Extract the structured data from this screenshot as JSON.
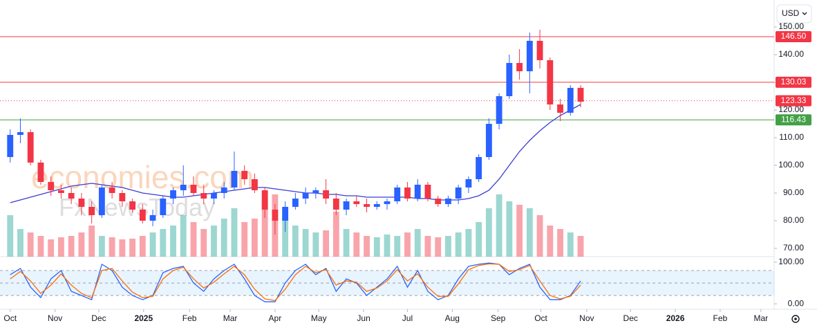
{
  "chart_data": {
    "type": "candlestick",
    "currency": "USD",
    "watermark": [
      "economies.com",
      "FxNewsToday"
    ],
    "x": [
      0,
      1,
      2,
      3,
      4,
      5,
      6,
      7,
      8,
      9,
      10,
      11,
      12,
      13,
      14,
      15,
      16,
      17,
      18,
      19,
      20,
      21,
      22,
      23,
      24,
      25,
      26,
      27,
      28,
      29,
      30,
      31,
      32,
      33,
      34,
      35,
      36,
      37,
      38,
      39,
      40,
      41,
      42,
      43,
      44,
      45,
      46,
      47,
      48,
      49,
      50,
      51,
      52,
      53,
      54,
      55,
      56
    ],
    "open": [
      103,
      111,
      112,
      101,
      94,
      91,
      90,
      88,
      85,
      82,
      92,
      90,
      87,
      84,
      80,
      82,
      88,
      91,
      93,
      90,
      88,
      90,
      92,
      98,
      95,
      91,
      84,
      80,
      85,
      88,
      90,
      91,
      88,
      84,
      87,
      86,
      85,
      86,
      87,
      92,
      88,
      93,
      88,
      86,
      88,
      92,
      95,
      103,
      115,
      125,
      137,
      134,
      145,
      138,
      122,
      119,
      128
    ],
    "high": [
      113,
      117,
      113,
      102,
      96,
      93,
      92,
      90,
      87,
      93,
      94,
      91,
      88,
      86,
      84,
      89,
      92,
      100,
      96,
      93,
      91,
      94,
      105,
      100,
      97,
      92,
      86,
      87,
      90,
      92,
      92,
      95,
      90,
      88,
      89,
      88,
      87,
      88,
      93,
      94,
      95,
      94,
      89,
      89,
      93,
      96,
      104,
      117,
      126,
      140,
      142,
      148,
      149,
      139,
      124,
      129,
      129
    ],
    "low": [
      101,
      108,
      100,
      93,
      89,
      88,
      86,
      82,
      79,
      81,
      88,
      85,
      83,
      79,
      78,
      81,
      86,
      89,
      89,
      86,
      86,
      88,
      91,
      93,
      90,
      81,
      75,
      76,
      84,
      86,
      88,
      86,
      82,
      82,
      85,
      83,
      84,
      84,
      86,
      87,
      87,
      87,
      85,
      85,
      86,
      90,
      94,
      102,
      113,
      124,
      131,
      126,
      135,
      120,
      116,
      118,
      121
    ],
    "close": [
      111,
      112,
      101,
      94,
      91,
      90,
      88,
      85,
      82,
      92,
      90,
      87,
      84,
      80,
      82,
      88,
      91,
      93,
      90,
      88,
      90,
      92,
      98,
      95,
      91,
      84,
      80,
      85,
      88,
      90,
      91,
      88,
      84,
      87,
      86,
      85,
      86,
      87,
      92,
      88,
      93,
      88,
      86,
      88,
      92,
      95,
      103,
      115,
      125,
      137,
      134,
      145,
      138,
      122,
      119,
      128,
      123
    ],
    "volume": [
      60,
      40,
      35,
      30,
      25,
      28,
      30,
      35,
      45,
      30,
      28,
      25,
      26,
      30,
      35,
      40,
      45,
      60,
      50,
      40,
      45,
      55,
      70,
      50,
      55,
      80,
      90,
      60,
      45,
      40,
      35,
      38,
      65,
      40,
      35,
      30,
      28,
      32,
      30,
      35,
      40,
      30,
      28,
      30,
      35,
      40,
      50,
      70,
      90,
      80,
      75,
      70,
      60,
      45,
      40,
      35,
      30
    ],
    "up_color": "#2962ff",
    "down_color": "#f23645",
    "ma": {
      "color": "#3b3bd1",
      "values": [
        86.5,
        87.5,
        88.5,
        89.5,
        90.5,
        91.5,
        92.5,
        93,
        93.5,
        93,
        92.5,
        92,
        91,
        90,
        89.5,
        89,
        88.5,
        88.5,
        89,
        89.5,
        90,
        90.5,
        91,
        91.5,
        92,
        92,
        91.5,
        91,
        90.5,
        90,
        90,
        89.5,
        89.5,
        89,
        89,
        88.5,
        88.5,
        88.5,
        88.5,
        88.5,
        88,
        88,
        87.5,
        87.5,
        87.5,
        88,
        89,
        91,
        95,
        100,
        105,
        109,
        112.5,
        115.5,
        118,
        120,
        122
      ]
    },
    "xlim": [
      -1,
      75
    ],
    "xticks": [
      {
        "value": 0,
        "label": "Oct"
      },
      {
        "value": 4.4,
        "label": "Nov"
      },
      {
        "value": 8.7,
        "label": "Dec"
      },
      {
        "value": 13.1,
        "label": "2025"
      },
      {
        "value": 17.6,
        "label": "Feb"
      },
      {
        "value": 21.6,
        "label": "Mar"
      },
      {
        "value": 26,
        "label": "Apr"
      },
      {
        "value": 30.3,
        "label": "May"
      },
      {
        "value": 34.7,
        "label": "Jun"
      },
      {
        "value": 39,
        "label": "Jul"
      },
      {
        "value": 43.4,
        "label": "Aug"
      },
      {
        "value": 47.9,
        "label": "Sep"
      },
      {
        "value": 52.1,
        "label": "Oct"
      },
      {
        "value": 56.6,
        "label": "Nov"
      },
      {
        "value": 60.9,
        "label": "Dec"
      },
      {
        "value": 65.3,
        "label": "2026"
      },
      {
        "value": 69.7,
        "label": "Feb"
      },
      {
        "value": 73.7,
        "label": "Mar"
      }
    ],
    "ylim": [
      67,
      152.25
    ],
    "yticks": [
      {
        "value": 70,
        "label": "70.00"
      },
      {
        "value": 80,
        "label": "80.00"
      },
      {
        "value": 90,
        "label": "90.00"
      },
      {
        "value": 100,
        "label": "100.00"
      },
      {
        "value": 110,
        "label": "110.00"
      },
      {
        "value": 120,
        "label": "120.00"
      },
      {
        "value": 130,
        "label": "130.00"
      },
      {
        "value": 140,
        "label": "140.00"
      },
      {
        "value": 150,
        "label": "150.00"
      }
    ],
    "levels": [
      {
        "value": 146.5,
        "label": "146.50",
        "color": "#f23645",
        "style": "solid"
      },
      {
        "value": 130.03,
        "label": "130.03",
        "color": "#f23645",
        "style": "solid"
      },
      {
        "value": 123.33,
        "label": "123.33",
        "color": "#f23645",
        "style": "dotted"
      },
      {
        "value": 116.43,
        "label": "116.43",
        "color": "#43a047",
        "style": "solid"
      }
    ],
    "oscillator": {
      "ylim": [
        -13,
        110
      ],
      "yticks": [
        {
          "value": 0,
          "label": "0.00"
        },
        {
          "value": 100,
          "label": "100.00"
        }
      ],
      "levels": [
        80,
        50,
        20
      ],
      "k": {
        "color": "#2962ff",
        "values": [
          70,
          85,
          40,
          15,
          60,
          80,
          30,
          20,
          10,
          95,
          80,
          40,
          20,
          10,
          20,
          75,
          85,
          90,
          50,
          30,
          60,
          80,
          95,
          60,
          20,
          5,
          5,
          50,
          80,
          95,
          70,
          85,
          30,
          60,
          50,
          20,
          40,
          60,
          90,
          40,
          80,
          30,
          10,
          20,
          60,
          90,
          95,
          98,
          95,
          70,
          85,
          95,
          40,
          10,
          10,
          20,
          55
        ]
      },
      "d": {
        "color": "#ff6d00",
        "values": [
          60,
          78,
          55,
          25,
          45,
          72,
          45,
          25,
          15,
          80,
          85,
          55,
          28,
          15,
          18,
          60,
          80,
          88,
          60,
          38,
          52,
          72,
          90,
          70,
          35,
          12,
          8,
          35,
          70,
          90,
          75,
          82,
          45,
          55,
          52,
          30,
          38,
          55,
          82,
          55,
          72,
          40,
          18,
          18,
          48,
          82,
          92,
          96,
          95,
          78,
          82,
          92,
          55,
          20,
          12,
          18,
          45
        ]
      }
    }
  }
}
